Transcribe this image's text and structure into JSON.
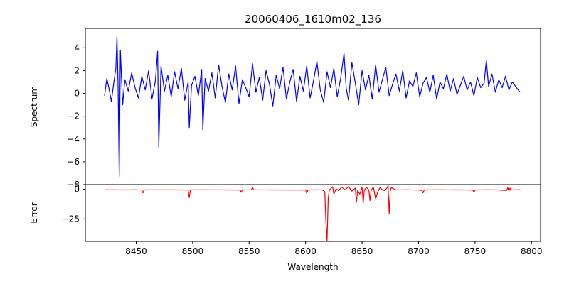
{
  "chart_data": {
    "type": "line",
    "title": "20060406_1610m02_136",
    "xlabel": "Wavelength",
    "xlim": [
      8405,
      8808
    ],
    "x_ticks": [
      8450,
      8500,
      8550,
      8600,
      8650,
      8700,
      8750,
      8800
    ],
    "panels": [
      {
        "name": "spectrum",
        "ylabel": "Spectrum",
        "ylim": [
          -8.0,
          5.7
        ],
        "y_ticks": [
          4,
          2,
          0,
          -2,
          -4,
          -6,
          -8
        ],
        "color": "#0000ff",
        "series": {
          "name": "Spectrum",
          "x": [
            8422,
            8424,
            8426,
            8428,
            8430,
            8432,
            8433,
            8434,
            8435,
            8436,
            8438,
            8440,
            8443,
            8446,
            8449,
            8452,
            8455,
            8458,
            8461,
            8464,
            8467,
            8469,
            8470,
            8472,
            8475,
            8478,
            8481,
            8484,
            8487,
            8490,
            8493,
            8496,
            8497,
            8499,
            8502,
            8505,
            8508,
            8509,
            8511,
            8514,
            8517,
            8520,
            8523,
            8526,
            8529,
            8532,
            8535,
            8538,
            8541,
            8544,
            8547,
            8550,
            8553,
            8556,
            8559,
            8562,
            8565,
            8568,
            8571,
            8574,
            8577,
            8580,
            8583,
            8586,
            8589,
            8592,
            8595,
            8598,
            8601,
            8604,
            8607,
            8610,
            8613,
            8616,
            8619,
            8622,
            8625,
            8628,
            8631,
            8634,
            8636,
            8638,
            8641,
            8644,
            8647,
            8650,
            8653,
            8656,
            8659,
            8662,
            8665,
            8668,
            8671,
            8674,
            8677,
            8680,
            8683,
            8686,
            8689,
            8692,
            8695,
            8698,
            8701,
            8704,
            8707,
            8710,
            8713,
            8716,
            8719,
            8722,
            8725,
            8728,
            8731,
            8734,
            8737,
            8740,
            8743,
            8746,
            8749,
            8752,
            8755,
            8758,
            8760,
            8762,
            8765,
            8768,
            8771,
            8774,
            8777,
            8780,
            8783,
            8786,
            8789,
            8790
          ],
          "values": [
            -0.2,
            1.3,
            0.4,
            -0.7,
            0.8,
            2.2,
            5.0,
            0.6,
            -7.3,
            3.8,
            -1.0,
            1.2,
            0.2,
            1.8,
            0.5,
            -0.4,
            1.5,
            0.3,
            2.0,
            -0.5,
            1.1,
            3.7,
            -4.7,
            2.4,
            0.2,
            1.6,
            -0.3,
            1.9,
            0.4,
            2.2,
            -0.6,
            1.0,
            -3.0,
            0.7,
            1.5,
            -0.2,
            2.1,
            -3.2,
            1.3,
            0.2,
            1.8,
            -0.4,
            2.5,
            0.6,
            -0.8,
            1.7,
            0.3,
            2.4,
            -0.9,
            1.2,
            0.5,
            -0.3,
            2.6,
            0.1,
            1.4,
            -0.6,
            2.0,
            0.8,
            -1.1,
            1.6,
            0.4,
            2.3,
            -0.5,
            1.0,
            2.1,
            -0.7,
            1.5,
            0.2,
            2.4,
            -0.4,
            1.1,
            2.8,
            0.3,
            -0.8,
            1.9,
            0.5,
            2.2,
            -0.3,
            1.3,
            3.5,
            0.4,
            -0.6,
            2.7,
            0.9,
            -1.0,
            2.0,
            0.3,
            1.6,
            -0.5,
            2.5,
            0.1,
            1.2,
            2.3,
            -0.2,
            0.8,
            1.7,
            0.2,
            2.0,
            -0.4,
            1.1,
            0.6,
            1.8,
            -0.3,
            0.9,
            1.4,
            0.1,
            1.6,
            -0.5,
            1.0,
            0.4,
            1.7,
            0.2,
            1.3,
            -0.1,
            0.7,
            1.5,
            0.3,
            1.0,
            -0.2,
            1.4,
            0.5,
            0.9,
            2.9,
            0.6,
            1.7,
            0.1,
            1.2,
            0.5,
            1.5,
            0.3,
            1.0,
            0.6,
            0.2,
            0.1
          ]
        }
      },
      {
        "name": "error",
        "ylabel": "Error",
        "ylim": [
          -44,
          4
        ],
        "y_ticks": [
          0,
          -25
        ],
        "color": "#ff0000",
        "series": {
          "name": "Error",
          "x": [
            8422,
            8430,
            8440,
            8450,
            8455,
            8456,
            8457,
            8470,
            8490,
            8496,
            8497,
            8498,
            8510,
            8530,
            8542,
            8543,
            8544,
            8552,
            8553,
            8554,
            8570,
            8590,
            8600,
            8601,
            8602,
            8610,
            8615,
            8617,
            8618,
            8619,
            8620,
            8621,
            8624,
            8625,
            8627,
            8629,
            8632,
            8635,
            8638,
            8641,
            8644,
            8645,
            8646,
            8648,
            8650,
            8651,
            8652,
            8654,
            8656,
            8657,
            8658,
            8660,
            8662,
            8664,
            8666,
            8668,
            8670,
            8672,
            8673,
            8674,
            8675,
            8676,
            8680,
            8690,
            8700,
            8703,
            8704,
            8705,
            8720,
            8740,
            8748,
            8749,
            8750,
            8760,
            8770,
            8778,
            8779,
            8780,
            8781,
            8782,
            8790
          ],
          "values": [
            -0.4,
            -0.4,
            -0.5,
            -0.4,
            -0.6,
            -3.0,
            -0.5,
            -0.4,
            -0.5,
            -0.6,
            -7.0,
            -0.5,
            -0.4,
            -0.5,
            -0.6,
            -2.4,
            -0.5,
            -0.4,
            1.5,
            -0.4,
            -0.5,
            -0.6,
            -0.5,
            -3.3,
            -0.5,
            -0.4,
            -0.6,
            -2.0,
            -28.0,
            -43.5,
            -8.0,
            -0.5,
            2.2,
            -4.0,
            0.5,
            -1.0,
            1.8,
            -0.5,
            2.3,
            -1.5,
            1.0,
            -11.0,
            -1.0,
            -4.0,
            2.0,
            -11.5,
            -0.5,
            1.5,
            -0.5,
            -9.5,
            -1.0,
            2.0,
            -8.0,
            -2.0,
            1.5,
            -0.5,
            -1.0,
            1.0,
            3.3,
            -20.5,
            -0.5,
            1.5,
            -0.5,
            -0.4,
            -0.6,
            -1.0,
            -3.0,
            -0.5,
            -0.4,
            -0.5,
            -0.6,
            -2.5,
            -0.5,
            -0.4,
            -0.5,
            -1.0,
            1.5,
            -1.5,
            1.0,
            -0.5,
            -0.3
          ]
        }
      }
    ]
  }
}
